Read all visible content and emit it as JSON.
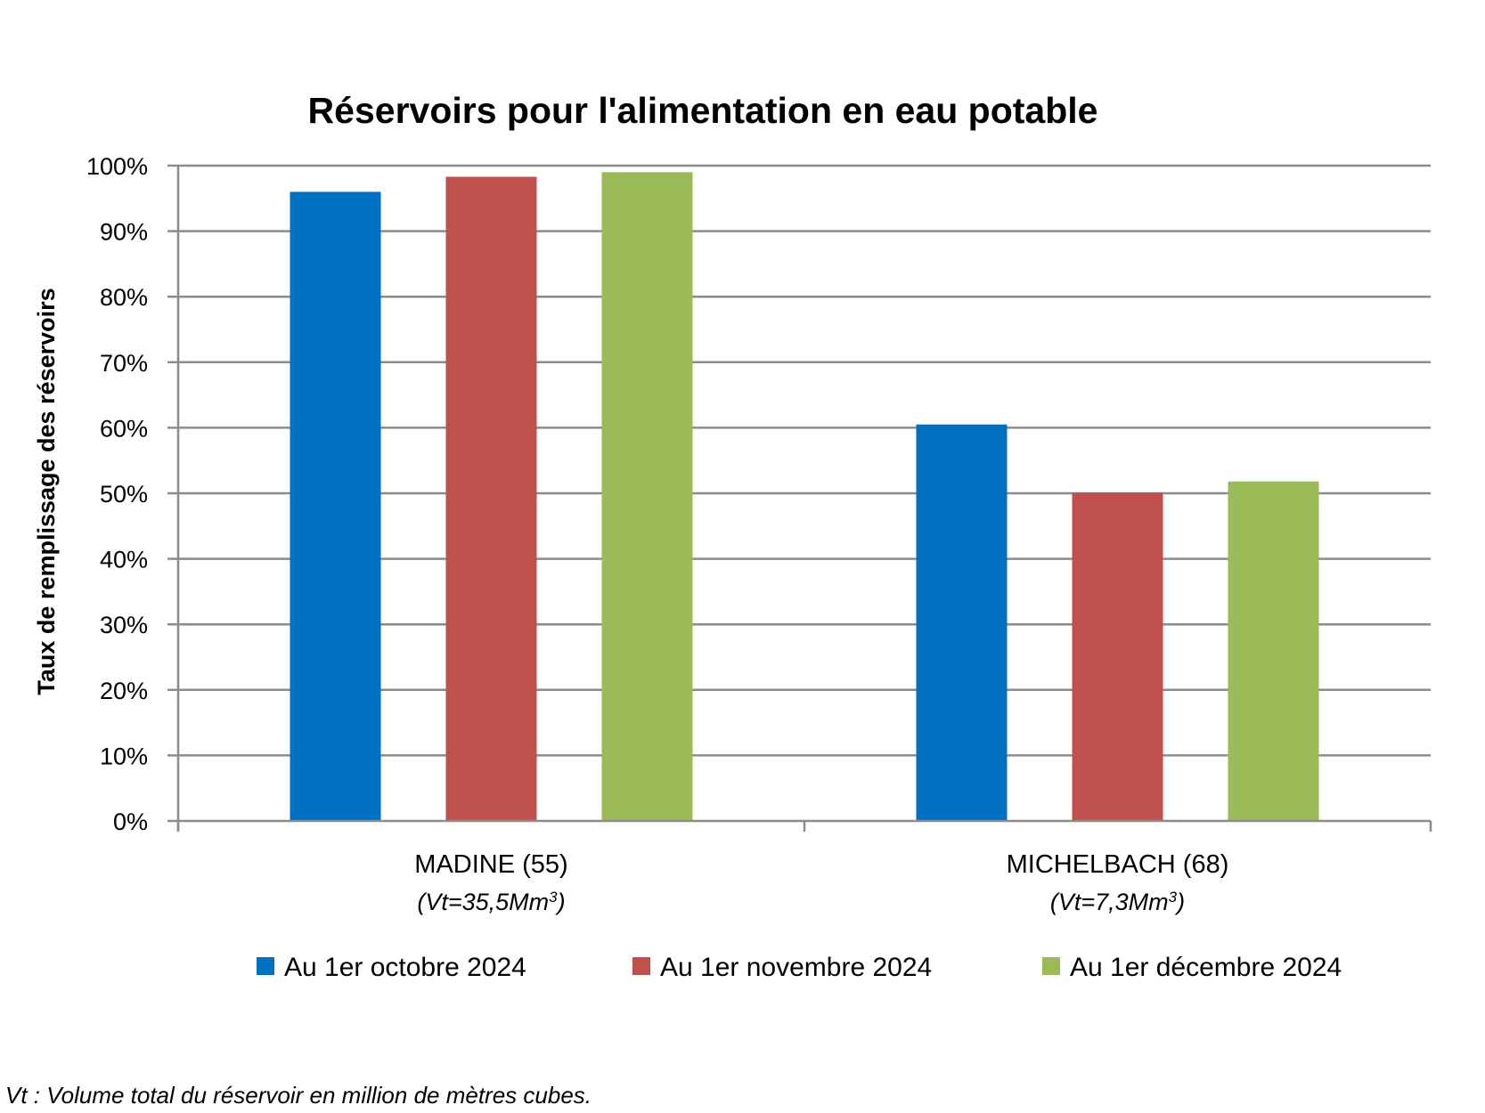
{
  "chart_data": {
    "type": "bar",
    "title": "Réservoirs pour l'alimentation en eau potable",
    "ylabel": "Taux de remplissage des réservoirs",
    "xlabel": "",
    "ylim": [
      0,
      100
    ],
    "yticks": [
      "0%",
      "10%",
      "20%",
      "30%",
      "40%",
      "50%",
      "60%",
      "70%",
      "80%",
      "90%",
      "100%"
    ],
    "grid": true,
    "legend_position": "bottom",
    "categories": [
      "MADINE (55)",
      "MICHELBACH (68)"
    ],
    "category_sublabels": [
      {
        "prefix": "(Vt=35,5Mm",
        "sup": "3",
        "suffix": ")"
      },
      {
        "prefix": "(Vt=7,3Mm",
        "sup": "3",
        "suffix": ")"
      }
    ],
    "series": [
      {
        "name": "Au 1er octobre 2024",
        "color": "#0070c0",
        "values": [
          96,
          60.5
        ]
      },
      {
        "name": "Au 1er novembre 2024",
        "color": "#c0504d",
        "values": [
          98.3,
          50.1
        ]
      },
      {
        "name": "Au 1er décembre 2024",
        "color": "#9bbb59",
        "values": [
          99,
          51.8
        ]
      }
    ]
  },
  "footnote": "Vt : Volume total du réservoir en million de mètres cubes."
}
